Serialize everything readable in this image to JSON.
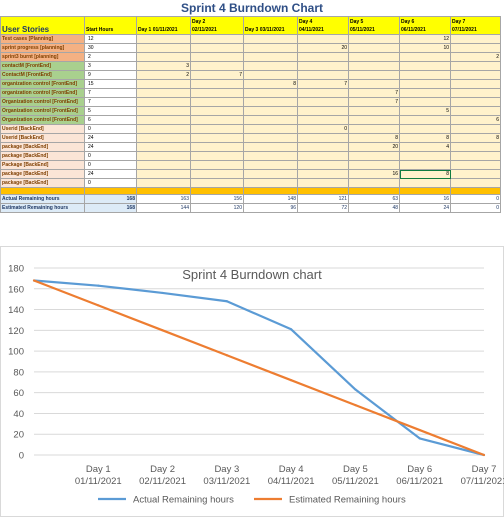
{
  "sheet": {
    "title": "Sprint 4 Burndown Chart",
    "headers": {
      "user_stories": "User Stories",
      "start_hours": "Start Hours",
      "days": [
        [
          "",
          "Day 1 01/11/2021"
        ],
        [
          "Day 2",
          "02/11/2021"
        ],
        [
          "",
          "Day 3 03/11/2021"
        ],
        [
          "Day 4",
          "04/11/2021"
        ],
        [
          "Day 5",
          "05/11/2021"
        ],
        [
          "Day 6",
          "06/11/2021"
        ],
        [
          "Day 7",
          "07/11/2021"
        ]
      ]
    },
    "rows": [
      {
        "story": "Test cases  [Planning]",
        "cat": "planning",
        "start": "12",
        "cells": [
          "",
          "",
          "",
          "",
          "",
          "12",
          ""
        ]
      },
      {
        "story": "sprint progress [planning]",
        "cat": "planning",
        "start": "30",
        "cells": [
          "",
          "",
          "",
          "20",
          "",
          "10",
          ""
        ]
      },
      {
        "story": "sprint3 burnt   [planning]",
        "cat": "planning",
        "start": "2",
        "cells": [
          "",
          "",
          "",
          "",
          "",
          "",
          "2"
        ]
      },
      {
        "story": "contactM   [FrontEnd]",
        "cat": "frontend",
        "start": "3",
        "cells": [
          "3",
          "",
          "",
          "",
          "",
          "",
          ""
        ]
      },
      {
        "story": "ContactM   [FrontEnd]",
        "cat": "frontend",
        "start": "9",
        "cells": [
          "2",
          "7",
          "",
          "",
          "",
          "",
          ""
        ]
      },
      {
        "story": "organization control [FrontEnd]",
        "cat": "frontend",
        "start": "15",
        "cells": [
          "",
          "",
          "8",
          "7",
          "",
          "",
          ""
        ]
      },
      {
        "story": "organization control   [FrontEnd]",
        "cat": "frontend",
        "start": "7",
        "cells": [
          "",
          "",
          "",
          "",
          "7",
          "",
          ""
        ]
      },
      {
        "story": "Organization control [FrontEnd]",
        "cat": "frontend",
        "start": "7",
        "cells": [
          "",
          "",
          "",
          "",
          "7",
          "",
          ""
        ]
      },
      {
        "story": "Organization control   [FrontEnd]",
        "cat": "frontend",
        "start": "5",
        "cells": [
          "",
          "",
          "",
          "",
          "",
          "5",
          ""
        ]
      },
      {
        "story": "Organization control   [FrontEnd]",
        "cat": "frontend",
        "start": "6",
        "cells": [
          "",
          "",
          "",
          "",
          "",
          "",
          "6"
        ]
      },
      {
        "story": "Userid  [BackEnd]",
        "cat": "backend",
        "start": "0",
        "cells": [
          "",
          "",
          "",
          "0",
          "",
          "",
          ""
        ]
      },
      {
        "story": "Userid  [BackEnd]",
        "cat": "backend",
        "start": "24",
        "cells": [
          "",
          "",
          "",
          "",
          "8",
          "8",
          "8"
        ]
      },
      {
        "story": "package  [BackEnd]",
        "cat": "backend",
        "start": "24",
        "cells": [
          "",
          "",
          "",
          "",
          "20",
          "4",
          ""
        ]
      },
      {
        "story": "package  [BackEnd]",
        "cat": "backend",
        "start": "0",
        "cells": [
          "",
          "",
          "",
          "",
          "",
          "",
          ""
        ]
      },
      {
        "story": "Package  [BackEnd]",
        "cat": "backend",
        "start": "0",
        "cells": [
          "",
          "",
          "",
          "",
          "",
          "",
          ""
        ]
      },
      {
        "story": "package  [BackEnd]",
        "cat": "backend",
        "start": "24",
        "cells": [
          "",
          "",
          "",
          "",
          "16",
          "8",
          ""
        ]
      },
      {
        "story": "package  [BackEnd]",
        "cat": "backend",
        "start": "0",
        "cells": [
          "",
          "",
          "",
          "",
          "",
          "",
          ""
        ]
      }
    ],
    "totals": [
      {
        "label": "Actual Remaining hours",
        "start": "168",
        "cells": [
          "163",
          "156",
          "148",
          "121",
          "63",
          "16",
          "0"
        ]
      },
      {
        "label": "Estimated Remaining hours",
        "start": "168",
        "cells": [
          "144",
          "120",
          "96",
          "72",
          "48",
          "24",
          "0"
        ]
      }
    ]
  },
  "chart_data": {
    "type": "line",
    "title": "Sprint 4 Burndown chart",
    "categories": [
      [
        "",
        ""
      ],
      [
        "Day 1",
        "01/11/2021"
      ],
      [
        "Day 2",
        "02/11/2021"
      ],
      [
        "Day 3",
        "03/11/2021"
      ],
      [
        "Day 4",
        "04/11/2021"
      ],
      [
        "Day 5",
        "05/11/2021"
      ],
      [
        "Day 6",
        "06/11/2021"
      ],
      [
        "Day 7",
        "07/11/2021"
      ]
    ],
    "series": [
      {
        "name": "Actual Remaining hours",
        "color": "#5b9bd5",
        "values": [
          168,
          163,
          156,
          148,
          121,
          63,
          16,
          0
        ]
      },
      {
        "name": "Estimated Remaining hours",
        "color": "#ed7d31",
        "values": [
          168,
          144,
          120,
          96,
          72,
          48,
          24,
          0
        ]
      }
    ],
    "ylim": [
      0,
      180
    ],
    "yticks": [
      0,
      20,
      40,
      60,
      80,
      100,
      120,
      140,
      160,
      180
    ],
    "grid": true,
    "legend": "bottom"
  }
}
